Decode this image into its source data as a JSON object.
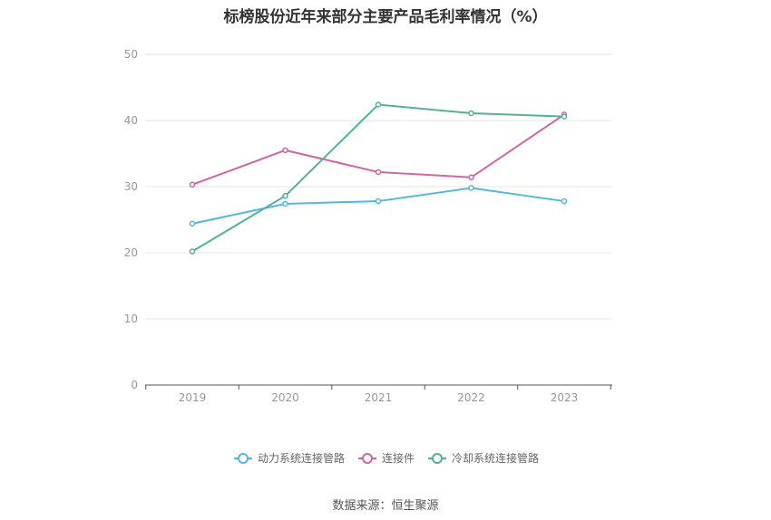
{
  "title": "标榜股份近年来部分主要产品毛利率情况（%）",
  "source": "数据来源：恒生聚源",
  "chart_data": {
    "type": "line",
    "title": "标榜股份近年来部分主要产品毛利率情况（%）",
    "x": [
      "2019",
      "2020",
      "2021",
      "2022",
      "2023"
    ],
    "ylim": [
      0,
      50
    ],
    "yticks": [
      0,
      10,
      20,
      30,
      40,
      50
    ],
    "grid": true,
    "legend_position": "bottom",
    "series": [
      {
        "name": "动力系统连接管路",
        "color": "#4fb8e8",
        "values": [
          24.4,
          27.4,
          27.8,
          29.8,
          27.8
        ]
      },
      {
        "name": "连接件",
        "color": "#d462a6",
        "values": [
          30.3,
          35.5,
          32.2,
          31.4,
          40.9
        ]
      },
      {
        "name": "冷却系统连接管路",
        "color": "#4db39a",
        "values": [
          20.2,
          28.6,
          42.4,
          41.1,
          40.6
        ]
      }
    ]
  }
}
